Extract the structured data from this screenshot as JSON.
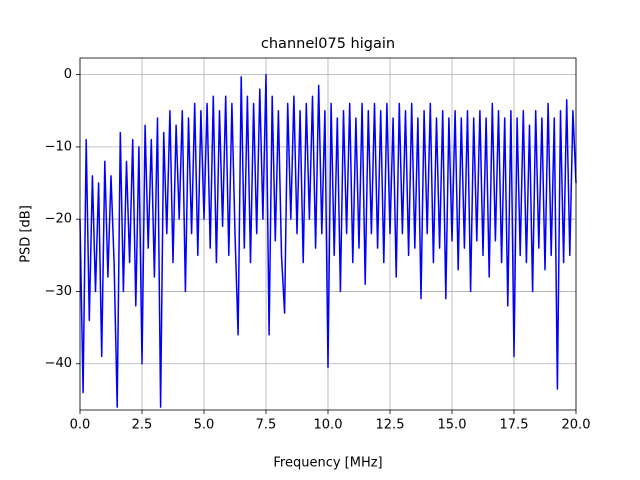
{
  "chart_data": {
    "type": "line",
    "title": "channel075 higain",
    "x_label": "Frequency [MHz]",
    "y_label": "PSD [dB]",
    "xlim": [
      0,
      20
    ],
    "ylim": [
      -46.4,
      2.3
    ],
    "grid": true,
    "xticks": [
      {
        "value": 0,
        "label": "0.0"
      },
      {
        "value": 2.5,
        "label": "2.5"
      },
      {
        "value": 5,
        "label": "5.0"
      },
      {
        "value": 7.5,
        "label": "7.5"
      },
      {
        "value": 10,
        "label": "10.0"
      },
      {
        "value": 12.5,
        "label": "12.5"
      },
      {
        "value": 15,
        "label": "15.0"
      },
      {
        "value": 17.5,
        "label": "17.5"
      },
      {
        "value": 20,
        "label": "20.0"
      }
    ],
    "yticks": [
      {
        "value": -40,
        "label": "−40"
      },
      {
        "value": -30,
        "label": "−30"
      },
      {
        "value": -20,
        "label": "−20"
      },
      {
        "value": -10,
        "label": "−10"
      },
      0
    ],
    "x": [
      0,
      0.125,
      0.25,
      0.375,
      0.5,
      0.625,
      0.75,
      0.875,
      1,
      1.125,
      1.25,
      1.375,
      1.5,
      1.625,
      1.75,
      1.875,
      2,
      2.125,
      2.25,
      2.375,
      2.5,
      2.625,
      2.75,
      2.875,
      3,
      3.125,
      3.25,
      3.375,
      3.5,
      3.625,
      3.75,
      3.875,
      4,
      4.125,
      4.25,
      4.375,
      4.5,
      4.625,
      4.75,
      4.875,
      5,
      5.125,
      5.25,
      5.375,
      5.5,
      5.625,
      5.75,
      5.875,
      6,
      6.125,
      6.25,
      6.375,
      6.5,
      6.625,
      6.75,
      6.875,
      7,
      7.125,
      7.25,
      7.375,
      7.5,
      7.625,
      7.75,
      7.875,
      8,
      8.125,
      8.25,
      8.375,
      8.5,
      8.625,
      8.75,
      8.875,
      9,
      9.125,
      9.25,
      9.375,
      9.5,
      9.625,
      9.75,
      9.875,
      10,
      10.125,
      10.25,
      10.375,
      10.5,
      10.625,
      10.75,
      10.875,
      11,
      11.125,
      11.25,
      11.375,
      11.5,
      11.625,
      11.75,
      11.875,
      12,
      12.125,
      12.25,
      12.375,
      12.5,
      12.625,
      12.75,
      12.875,
      13,
      13.125,
      13.25,
      13.375,
      13.5,
      13.625,
      13.75,
      13.875,
      14,
      14.125,
      14.25,
      14.375,
      14.5,
      14.625,
      14.75,
      14.875,
      15,
      15.125,
      15.25,
      15.375,
      15.5,
      15.625,
      15.75,
      15.875,
      16,
      16.125,
      16.25,
      16.375,
      16.5,
      16.625,
      16.75,
      16.875,
      17,
      17.125,
      17.25,
      17.375,
      17.5,
      17.625,
      17.75,
      17.875,
      18,
      18.125,
      18.25,
      18.375,
      18.5,
      18.625,
      18.75,
      18.875,
      19,
      19.125,
      19.25,
      19.375,
      19.5,
      19.625,
      19.75,
      19.875,
      20
    ],
    "series": [
      {
        "color": "#0000ff",
        "values": [
          -20,
          -44,
          -9,
          -34,
          -14,
          -30,
          -15,
          -39,
          -12,
          -28,
          -14,
          -26,
          -46,
          -8,
          -30,
          -12,
          -26,
          -9,
          -32,
          -10,
          -40,
          -7,
          -24,
          -9,
          -28,
          -6,
          -46,
          -8,
          -22,
          -5,
          -26,
          -7,
          -20,
          -5,
          -30,
          -6,
          -22,
          -4,
          -25,
          -5,
          -20,
          -4,
          -24,
          -3,
          -26,
          -5,
          -21,
          -3,
          -25,
          -4,
          -22,
          -36,
          -0.3,
          -24,
          -3,
          -26,
          -4,
          -22,
          -2,
          -20,
          0,
          -36,
          -3,
          -23,
          -5,
          -25,
          -33,
          -4,
          -20,
          -3,
          -22,
          -5,
          -26,
          -4,
          -20,
          -3,
          -24,
          -1.5,
          -22,
          -5,
          -40.5,
          -4,
          -25,
          -6,
          -30,
          -5,
          -22,
          -4,
          -26,
          -6,
          -24,
          -4,
          -29,
          -5,
          -22,
          -4,
          -24,
          -5,
          -26,
          -4,
          -22,
          -6,
          -28,
          -4,
          -22,
          -5,
          -25,
          -4,
          -24,
          -6,
          -31,
          -5,
          -22,
          -4,
          -26,
          -6,
          -24,
          -5,
          -31,
          -6,
          -23,
          -5,
          -27,
          -6,
          -24,
          -5,
          -30,
          -6,
          -23,
          -5,
          -25,
          -6,
          -28,
          -4,
          -23,
          -5,
          -26,
          -6,
          -32,
          -5,
          -39,
          -6,
          -25,
          -5,
          -26,
          -7,
          -30,
          -5,
          -24,
          -6,
          -27,
          -4,
          -25,
          -6,
          -43.5,
          -5,
          -26,
          -3.5,
          -25,
          -5,
          -15
        ]
      }
    ]
  }
}
